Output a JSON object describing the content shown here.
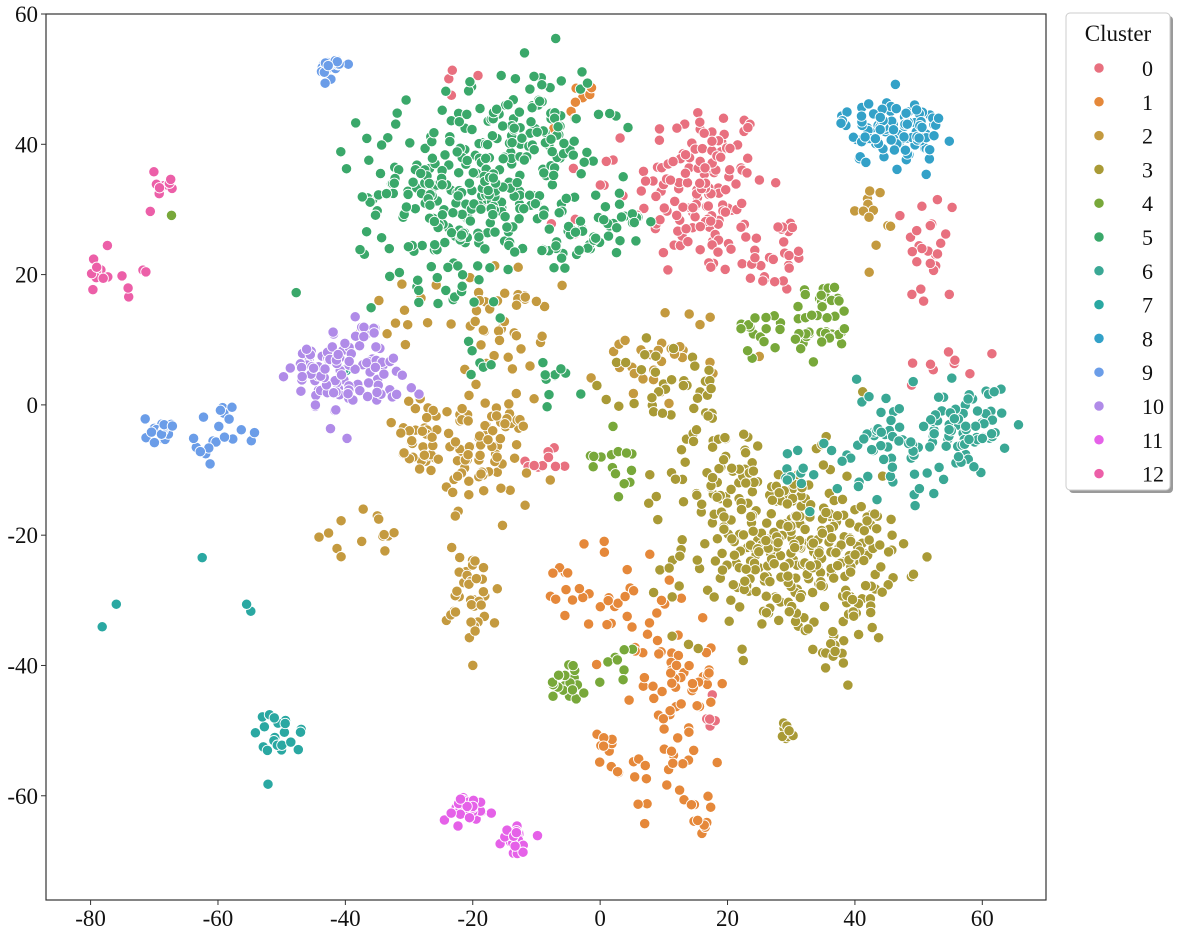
{
  "chart_data": {
    "type": "scatter",
    "title": "",
    "xlabel": "",
    "ylabel": "",
    "xlim": [
      -87,
      70
    ],
    "ylim": [
      -76,
      60
    ],
    "xticks": [
      -80,
      -60,
      -40,
      -20,
      0,
      20,
      40,
      60
    ],
    "yticks": [
      -60,
      -40,
      -20,
      0,
      20,
      40,
      60
    ],
    "grid": false,
    "legend": {
      "title": "Cluster",
      "position": "outside-right-top",
      "entries": [
        "0",
        "1",
        "2",
        "3",
        "4",
        "5",
        "6",
        "7",
        "8",
        "9",
        "10",
        "11",
        "12"
      ]
    },
    "series": [
      {
        "name": "0",
        "color": "#e8707f",
        "blobs": [
          {
            "cx": 16,
            "cy": 33,
            "sx": 5,
            "sy": 7,
            "n": 140
          },
          {
            "cx": 27,
            "cy": 23,
            "sx": 3,
            "sy": 3,
            "n": 30
          },
          {
            "cx": 52,
            "cy": 24,
            "sx": 2,
            "sy": 5,
            "n": 25
          },
          {
            "cx": 55,
            "cy": 6,
            "sx": 4,
            "sy": 1.5,
            "n": 8
          },
          {
            "cx": 0,
            "cy": 30,
            "sx": 5,
            "sy": 5,
            "n": 10
          },
          {
            "cx": -21,
            "cy": 51,
            "sx": 1.5,
            "sy": 1.5,
            "n": 4
          },
          {
            "cx": -9,
            "cy": -9,
            "sx": 2,
            "sy": 1,
            "n": 10
          },
          {
            "cx": 17,
            "cy": -48,
            "sx": 1,
            "sy": 1.5,
            "n": 5
          }
        ]
      },
      {
        "name": "1",
        "color": "#e5883a",
        "blobs": [
          {
            "cx": 12,
            "cy": -42,
            "sx": 3,
            "sy": 4,
            "n": 45
          },
          {
            "cx": 10,
            "cy": -55,
            "sx": 4,
            "sy": 4,
            "n": 30
          },
          {
            "cx": 5,
            "cy": -30,
            "sx": 5,
            "sy": 5,
            "n": 30
          },
          {
            "cx": -5,
            "cy": -27,
            "sx": 1.5,
            "sy": 2,
            "n": 10
          },
          {
            "cx": 15,
            "cy": -63,
            "sx": 1,
            "sy": 1.5,
            "n": 10
          },
          {
            "cx": 1,
            "cy": -52,
            "sx": 1,
            "sy": 1,
            "n": 6
          },
          {
            "cx": -4,
            "cy": 46,
            "sx": 2,
            "sy": 2,
            "n": 8
          }
        ]
      },
      {
        "name": "2",
        "color": "#c49a3f",
        "blobs": [
          {
            "cx": -19,
            "cy": -7,
            "sx": 4,
            "sy": 4,
            "n": 90
          },
          {
            "cx": -28,
            "cy": -5,
            "sx": 3,
            "sy": 3,
            "n": 30
          },
          {
            "cx": -20,
            "cy": -29,
            "sx": 2,
            "sy": 4,
            "n": 40
          },
          {
            "cx": -15,
            "cy": 13,
            "sx": 3,
            "sy": 4,
            "n": 40
          },
          {
            "cx": -38,
            "cy": -20,
            "sx": 4,
            "sy": 2,
            "n": 14
          },
          {
            "cx": 10,
            "cy": 8,
            "sx": 5,
            "sy": 4,
            "n": 30
          },
          {
            "cx": 43,
            "cy": 30,
            "sx": 1.5,
            "sy": 2.5,
            "n": 12
          },
          {
            "cx": -30,
            "cy": 14,
            "sx": 3,
            "sy": 3,
            "n": 12
          }
        ]
      },
      {
        "name": "3",
        "color": "#a99a36",
        "blobs": [
          {
            "cx": 28,
            "cy": -22,
            "sx": 8,
            "sy": 7,
            "n": 280
          },
          {
            "cx": 40,
            "cy": -25,
            "sx": 4,
            "sy": 6,
            "n": 60
          },
          {
            "cx": 12,
            "cy": 2,
            "sx": 4,
            "sy": 4,
            "n": 40
          },
          {
            "cx": 29,
            "cy": -50,
            "sx": 1,
            "sy": 1.5,
            "n": 8
          },
          {
            "cx": 36,
            "cy": -38,
            "sx": 2,
            "sy": 1,
            "n": 10
          },
          {
            "cx": 20,
            "cy": -10,
            "sx": 5,
            "sy": 4,
            "n": 40
          }
        ]
      },
      {
        "name": "4",
        "color": "#78a83a",
        "blobs": [
          {
            "cx": 35,
            "cy": 13,
            "sx": 2.5,
            "sy": 3,
            "n": 45
          },
          {
            "cx": 25,
            "cy": 11,
            "sx": 2,
            "sy": 2,
            "n": 15
          },
          {
            "cx": -5,
            "cy": -42,
            "sx": 1.5,
            "sy": 2,
            "n": 20
          },
          {
            "cx": 3,
            "cy": -8,
            "sx": 2,
            "sy": 3,
            "n": 15
          },
          {
            "cx": 3,
            "cy": -39,
            "sx": 1.5,
            "sy": 1.5,
            "n": 8
          },
          {
            "cx": -67,
            "cy": 28,
            "sx": 0.5,
            "sy": 0.5,
            "n": 1
          }
        ]
      },
      {
        "name": "5",
        "color": "#3aa86a",
        "blobs": [
          {
            "cx": -22,
            "cy": 32,
            "sx": 8,
            "sy": 7,
            "n": 260
          },
          {
            "cx": -10,
            "cy": 43,
            "sx": 5,
            "sy": 5,
            "n": 90
          },
          {
            "cx": -3,
            "cy": 25,
            "sx": 4,
            "sy": 3,
            "n": 40
          },
          {
            "cx": 4,
            "cy": 28,
            "sx": 2,
            "sy": 2,
            "n": 14
          },
          {
            "cx": -6,
            "cy": 5,
            "sx": 2,
            "sy": 2,
            "n": 10
          },
          {
            "cx": -20,
            "cy": 7,
            "sx": 2,
            "sy": 2,
            "n": 6
          }
        ]
      },
      {
        "name": "6",
        "color": "#3aa895",
        "blobs": [
          {
            "cx": 58,
            "cy": -3,
            "sx": 3,
            "sy": 3,
            "n": 60
          },
          {
            "cx": 46,
            "cy": -6,
            "sx": 5,
            "sy": 4,
            "n": 70
          },
          {
            "cx": 30,
            "cy": -9,
            "sx": 2,
            "sy": 3,
            "n": 10
          },
          {
            "cx": -40,
            "cy": 6,
            "sx": 1,
            "sy": 1,
            "n": 2
          }
        ]
      },
      {
        "name": "7",
        "color": "#2aa8a2",
        "blobs": [
          {
            "cx": -50,
            "cy": -51,
            "sx": 2,
            "sy": 2,
            "n": 20
          },
          {
            "cx": -55,
            "cy": -31,
            "sx": 0.5,
            "sy": 0.5,
            "n": 2
          },
          {
            "cx": -63,
            "cy": -23,
            "sx": 0.3,
            "sy": 0.3,
            "n": 1
          },
          {
            "cx": -76,
            "cy": -31,
            "sx": 0.3,
            "sy": 0.3,
            "n": 1
          },
          {
            "cx": -78,
            "cy": -34,
            "sx": 0.3,
            "sy": 0.3,
            "n": 1
          },
          {
            "cx": -52,
            "cy": -58,
            "sx": 0.3,
            "sy": 0.3,
            "n": 1
          }
        ]
      },
      {
        "name": "8",
        "color": "#33a1c8",
        "blobs": [
          {
            "cx": 46,
            "cy": 42,
            "sx": 4,
            "sy": 2.5,
            "n": 110
          }
        ]
      },
      {
        "name": "9",
        "color": "#6b9de8",
        "blobs": [
          {
            "cx": -42,
            "cy": 52,
            "sx": 1,
            "sy": 1,
            "n": 20
          },
          {
            "cx": -69,
            "cy": -4,
            "sx": 1.2,
            "sy": 1,
            "n": 20
          },
          {
            "cx": -60,
            "cy": -6,
            "sx": 2,
            "sy": 1.5,
            "n": 15
          },
          {
            "cx": -59,
            "cy": -1,
            "sx": 0.6,
            "sy": 0.6,
            "n": 6
          }
        ]
      },
      {
        "name": "10",
        "color": "#b08be8",
        "blobs": [
          {
            "cx": -40,
            "cy": 5,
            "sx": 3,
            "sy": 3.5,
            "n": 70
          },
          {
            "cx": -46,
            "cy": 6,
            "sx": 2,
            "sy": 1.5,
            "n": 20
          },
          {
            "cx": -32,
            "cy": 5,
            "sx": 2,
            "sy": 2,
            "n": 15
          },
          {
            "cx": -37,
            "cy": 11,
            "sx": 2,
            "sy": 2,
            "n": 10
          }
        ]
      },
      {
        "name": "11",
        "color": "#e561e8",
        "blobs": [
          {
            "cx": -21,
            "cy": -62,
            "sx": 2,
            "sy": 1,
            "n": 30
          },
          {
            "cx": -14,
            "cy": -67,
            "sx": 1.5,
            "sy": 1.5,
            "n": 25
          }
        ]
      },
      {
        "name": "12",
        "color": "#ec5fa8",
        "blobs": [
          {
            "cx": -79,
            "cy": 20,
            "sx": 1.2,
            "sy": 1,
            "n": 10
          },
          {
            "cx": -69,
            "cy": 34,
            "sx": 1.2,
            "sy": 1,
            "n": 10
          },
          {
            "cx": -73,
            "cy": 20,
            "sx": 1.5,
            "sy": 2,
            "n": 5
          },
          {
            "cx": -77,
            "cy": 24,
            "sx": 0.3,
            "sy": 0.3,
            "n": 1
          },
          {
            "cx": -70,
            "cy": 30,
            "sx": 0.3,
            "sy": 0.3,
            "n": 1
          }
        ]
      }
    ]
  }
}
